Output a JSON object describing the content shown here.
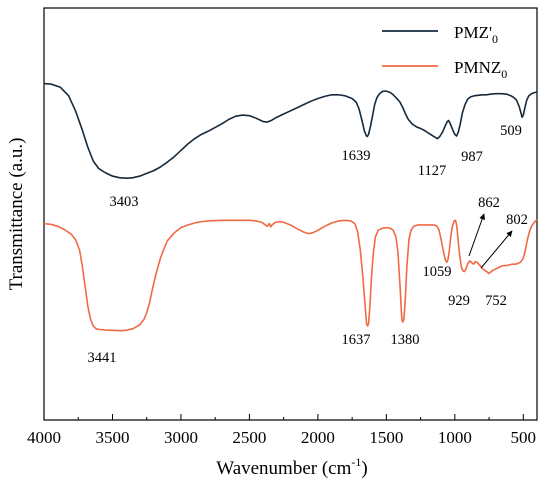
{
  "chart_data": {
    "type": "line",
    "title": "",
    "xlabel": "Wavenumber (cm",
    "xlabel_sup": "-1",
    "xlabel_close": ")",
    "ylabel": "Transmittance (a.u.)",
    "xlim": [
      4000,
      400
    ],
    "x_reversed": true,
    "yticks_shown": false,
    "grid": false,
    "legend_position": "top-right",
    "xticks": [
      {
        "value": 4000,
        "label": "4000"
      },
      {
        "value": 3500,
        "label": "3500"
      },
      {
        "value": 3000,
        "label": "3000"
      },
      {
        "value": 2500,
        "label": "2500"
      },
      {
        "value": 2000,
        "label": "2000"
      },
      {
        "value": 1500,
        "label": "1500"
      },
      {
        "value": 1000,
        "label": "1000"
      },
      {
        "value": 500,
        "label": "500"
      }
    ],
    "series": [
      {
        "name": "PMZ'",
        "name_sub": "0",
        "color": "#162a3c",
        "points": [
          [
            4000,
            0.995
          ],
          [
            3950,
            0.99
          ],
          [
            3880,
            0.96
          ],
          [
            3820,
            0.88
          ],
          [
            3770,
            0.74
          ],
          [
            3720,
            0.56
          ],
          [
            3680,
            0.4
          ],
          [
            3640,
            0.27
          ],
          [
            3600,
            0.2
          ],
          [
            3550,
            0.16
          ],
          [
            3500,
            0.13
          ],
          [
            3450,
            0.115
          ],
          [
            3400,
            0.11
          ],
          [
            3350,
            0.115
          ],
          [
            3300,
            0.13
          ],
          [
            3250,
            0.155
          ],
          [
            3200,
            0.18
          ],
          [
            3150,
            0.215
          ],
          [
            3100,
            0.26
          ],
          [
            3050,
            0.31
          ],
          [
            3000,
            0.37
          ],
          [
            2950,
            0.43
          ],
          [
            2900,
            0.48
          ],
          [
            2850,
            0.52
          ],
          [
            2800,
            0.55
          ],
          [
            2750,
            0.585
          ],
          [
            2700,
            0.62
          ],
          [
            2650,
            0.66
          ],
          [
            2600,
            0.69
          ],
          [
            2550,
            0.7
          ],
          [
            2500,
            0.695
          ],
          [
            2450,
            0.67
          ],
          [
            2400,
            0.64
          ],
          [
            2370,
            0.635
          ],
          [
            2340,
            0.65
          ],
          [
            2300,
            0.68
          ],
          [
            2250,
            0.71
          ],
          [
            2200,
            0.74
          ],
          [
            2150,
            0.77
          ],
          [
            2100,
            0.8
          ],
          [
            2050,
            0.83
          ],
          [
            2000,
            0.855
          ],
          [
            1950,
            0.875
          ],
          [
            1900,
            0.89
          ],
          [
            1850,
            0.89
          ],
          [
            1800,
            0.88
          ],
          [
            1750,
            0.855
          ],
          [
            1720,
            0.82
          ],
          [
            1700,
            0.76
          ],
          [
            1680,
            0.66
          ],
          [
            1660,
            0.55
          ],
          [
            1645,
            0.505
          ],
          [
            1639,
            0.5
          ],
          [
            1630,
            0.52
          ],
          [
            1615,
            0.6
          ],
          [
            1600,
            0.7
          ],
          [
            1585,
            0.8
          ],
          [
            1570,
            0.86
          ],
          [
            1550,
            0.9
          ],
          [
            1530,
            0.92
          ],
          [
            1510,
            0.925
          ],
          [
            1490,
            0.92
          ],
          [
            1470,
            0.91
          ],
          [
            1450,
            0.89
          ],
          [
            1420,
            0.85
          ],
          [
            1400,
            0.82
          ],
          [
            1380,
            0.77
          ],
          [
            1360,
            0.71
          ],
          [
            1340,
            0.66
          ],
          [
            1310,
            0.615
          ],
          [
            1280,
            0.59
          ],
          [
            1250,
            0.575
          ],
          [
            1220,
            0.555
          ],
          [
            1190,
            0.53
          ],
          [
            1160,
            0.505
          ],
          [
            1140,
            0.49
          ],
          [
            1127,
            0.48
          ],
          [
            1110,
            0.5
          ],
          [
            1090,
            0.54
          ],
          [
            1070,
            0.6
          ],
          [
            1055,
            0.64
          ],
          [
            1045,
            0.65
          ],
          [
            1030,
            0.61
          ],
          [
            1015,
            0.56
          ],
          [
            1000,
            0.52
          ],
          [
            987,
            0.505
          ],
          [
            975,
            0.54
          ],
          [
            960,
            0.62
          ],
          [
            945,
            0.72
          ],
          [
            925,
            0.8
          ],
          [
            905,
            0.85
          ],
          [
            885,
            0.87
          ],
          [
            860,
            0.88
          ],
          [
            830,
            0.885
          ],
          [
            800,
            0.89
          ],
          [
            770,
            0.89
          ],
          [
            740,
            0.895
          ],
          [
            700,
            0.9
          ],
          [
            660,
            0.9
          ],
          [
            620,
            0.895
          ],
          [
            590,
            0.88
          ],
          [
            570,
            0.865
          ],
          [
            550,
            0.84
          ],
          [
            530,
            0.78
          ],
          [
            515,
            0.71
          ],
          [
            509,
            0.68
          ],
          [
            500,
            0.7
          ],
          [
            490,
            0.76
          ],
          [
            475,
            0.84
          ],
          [
            460,
            0.88
          ],
          [
            440,
            0.9
          ],
          [
            420,
            0.91
          ],
          [
            400,
            0.915
          ]
        ]
      },
      {
        "name": "PMNZ",
        "name_sub": "0",
        "color": "#f06a44",
        "points": [
          [
            4000,
            0.92
          ],
          [
            3950,
            0.915
          ],
          [
            3900,
            0.9
          ],
          [
            3850,
            0.875
          ],
          [
            3800,
            0.84
          ],
          [
            3770,
            0.8
          ],
          [
            3740,
            0.72
          ],
          [
            3720,
            0.6
          ],
          [
            3700,
            0.45
          ],
          [
            3680,
            0.3
          ],
          [
            3660,
            0.2
          ],
          [
            3640,
            0.15
          ],
          [
            3620,
            0.13
          ],
          [
            3600,
            0.125
          ],
          [
            3550,
            0.12
          ],
          [
            3500,
            0.118
          ],
          [
            3441,
            0.115
          ],
          [
            3400,
            0.118
          ],
          [
            3350,
            0.13
          ],
          [
            3300,
            0.16
          ],
          [
            3270,
            0.2
          ],
          [
            3250,
            0.25
          ],
          [
            3230,
            0.32
          ],
          [
            3210,
            0.42
          ],
          [
            3180,
            0.55
          ],
          [
            3150,
            0.66
          ],
          [
            3120,
            0.74
          ],
          [
            3100,
            0.79
          ],
          [
            3050,
            0.85
          ],
          [
            3000,
            0.89
          ],
          [
            2950,
            0.91
          ],
          [
            2900,
            0.925
          ],
          [
            2850,
            0.935
          ],
          [
            2800,
            0.94
          ],
          [
            2700,
            0.945
          ],
          [
            2600,
            0.945
          ],
          [
            2500,
            0.945
          ],
          [
            2450,
            0.94
          ],
          [
            2410,
            0.93
          ],
          [
            2390,
            0.915
          ],
          [
            2370,
            0.9
          ],
          [
            2355,
            0.92
          ],
          [
            2345,
            0.895
          ],
          [
            2335,
            0.91
          ],
          [
            2310,
            0.93
          ],
          [
            2280,
            0.935
          ],
          [
            2250,
            0.93
          ],
          [
            2200,
            0.91
          ],
          [
            2150,
            0.88
          ],
          [
            2100,
            0.855
          ],
          [
            2070,
            0.845
          ],
          [
            2040,
            0.85
          ],
          [
            2000,
            0.87
          ],
          [
            1950,
            0.9
          ],
          [
            1900,
            0.925
          ],
          [
            1850,
            0.94
          ],
          [
            1800,
            0.945
          ],
          [
            1760,
            0.94
          ],
          [
            1730,
            0.92
          ],
          [
            1710,
            0.86
          ],
          [
            1690,
            0.72
          ],
          [
            1670,
            0.5
          ],
          [
            1655,
            0.3
          ],
          [
            1645,
            0.17
          ],
          [
            1637,
            0.15
          ],
          [
            1630,
            0.17
          ],
          [
            1620,
            0.3
          ],
          [
            1610,
            0.5
          ],
          [
            1595,
            0.7
          ],
          [
            1580,
            0.82
          ],
          [
            1560,
            0.87
          ],
          [
            1530,
            0.885
          ],
          [
            1500,
            0.89
          ],
          [
            1470,
            0.885
          ],
          [
            1450,
            0.87
          ],
          [
            1430,
            0.82
          ],
          [
            1415,
            0.7
          ],
          [
            1400,
            0.45
          ],
          [
            1390,
            0.25
          ],
          [
            1385,
            0.19
          ],
          [
            1380,
            0.18
          ],
          [
            1372,
            0.2
          ],
          [
            1362,
            0.35
          ],
          [
            1350,
            0.6
          ],
          [
            1335,
            0.8
          ],
          [
            1320,
            0.87
          ],
          [
            1300,
            0.9
          ],
          [
            1270,
            0.91
          ],
          [
            1240,
            0.91
          ],
          [
            1210,
            0.91
          ],
          [
            1180,
            0.91
          ],
          [
            1150,
            0.91
          ],
          [
            1130,
            0.9
          ],
          [
            1115,
            0.87
          ],
          [
            1100,
            0.8
          ],
          [
            1085,
            0.72
          ],
          [
            1070,
            0.65
          ],
          [
            1059,
            0.63
          ],
          [
            1050,
            0.65
          ],
          [
            1040,
            0.72
          ],
          [
            1030,
            0.82
          ],
          [
            1018,
            0.9
          ],
          [
            1005,
            0.94
          ],
          [
            995,
            0.945
          ],
          [
            985,
            0.9
          ],
          [
            975,
            0.78
          ],
          [
            962,
            0.66
          ],
          [
            952,
            0.59
          ],
          [
            940,
            0.565
          ],
          [
            929,
            0.56
          ],
          [
            918,
            0.58
          ],
          [
            905,
            0.62
          ],
          [
            890,
            0.64
          ],
          [
            875,
            0.625
          ],
          [
            862,
            0.615
          ],
          [
            850,
            0.635
          ],
          [
            838,
            0.63
          ],
          [
            825,
            0.615
          ],
          [
            812,
            0.6
          ],
          [
            802,
            0.585
          ],
          [
            790,
            0.575
          ],
          [
            775,
            0.565
          ],
          [
            762,
            0.555
          ],
          [
            752,
            0.545
          ],
          [
            740,
            0.555
          ],
          [
            720,
            0.57
          ],
          [
            700,
            0.58
          ],
          [
            680,
            0.59
          ],
          [
            660,
            0.6
          ],
          [
            640,
            0.605
          ],
          [
            620,
            0.605
          ],
          [
            600,
            0.61
          ],
          [
            580,
            0.615
          ],
          [
            560,
            0.615
          ],
          [
            540,
            0.62
          ],
          [
            520,
            0.63
          ],
          [
            500,
            0.66
          ],
          [
            485,
            0.72
          ],
          [
            470,
            0.8
          ],
          [
            455,
            0.86
          ],
          [
            440,
            0.9
          ],
          [
            420,
            0.93
          ],
          [
            400,
            0.95
          ]
        ]
      }
    ],
    "annotations": [
      {
        "text": "3403"
      },
      {
        "text": "1639"
      },
      {
        "text": "1127"
      },
      {
        "text": "987"
      },
      {
        "text": "509"
      },
      {
        "text": "862"
      },
      {
        "text": "802"
      },
      {
        "text": "1059"
      },
      {
        "text": "929"
      },
      {
        "text": "752"
      },
      {
        "text": "3441"
      },
      {
        "text": "1637"
      },
      {
        "text": "1380"
      }
    ]
  }
}
